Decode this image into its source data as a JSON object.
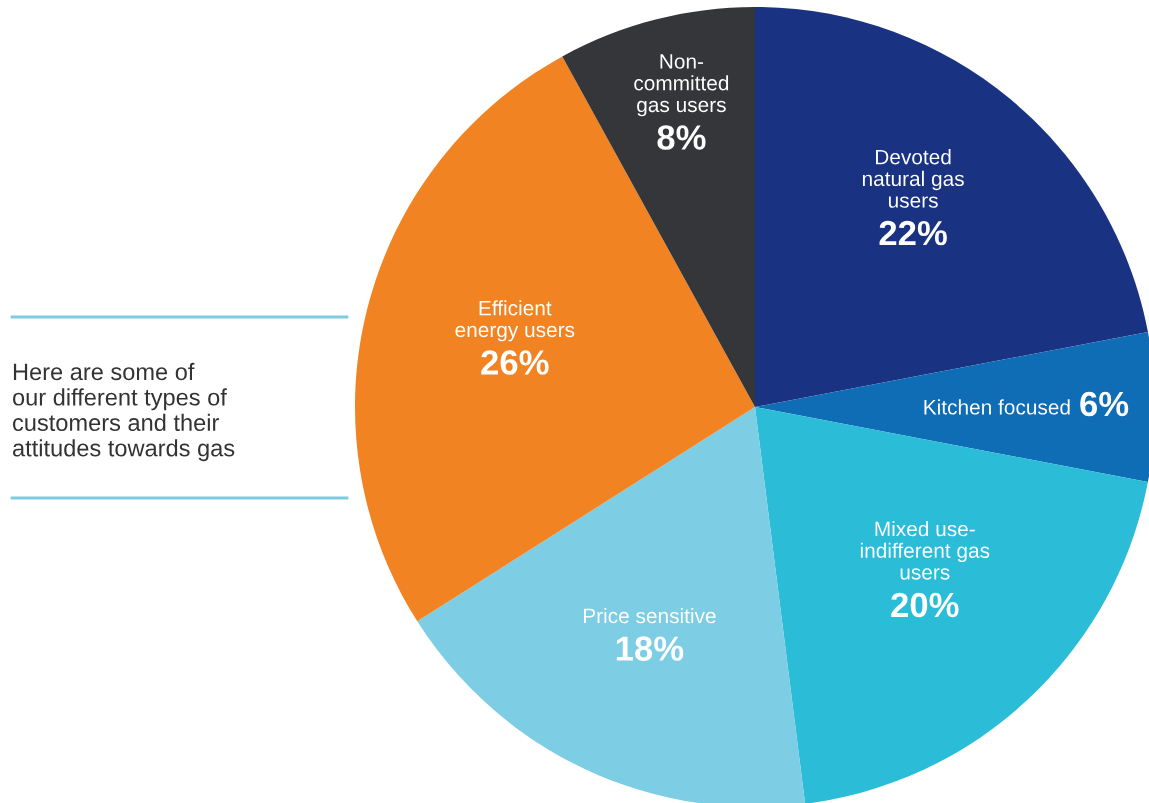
{
  "chart_data": {
    "type": "pie",
    "categories": [
      "Devoted\nnatural gas\nusers",
      "Kitchen focused",
      "Mixed use-\nindifferent gas\nusers",
      "Price sensitive",
      "Efficient\nenergy users",
      "Non-\ncommitted\ngas users"
    ],
    "values": [
      22,
      6,
      20,
      18,
      26,
      8
    ],
    "value_labels": [
      "22%",
      "6%",
      "20%",
      "18%",
      "26%",
      "8%"
    ],
    "colors": [
      "#1a3282",
      "#0f6db5",
      "#2bbcd8",
      "#7dcde4",
      "#f28322",
      "#35363a"
    ],
    "annotations": [
      "Here are some of\nour different types of\ncustomers and their\nattitudes towards gas"
    ],
    "legend": false
  }
}
